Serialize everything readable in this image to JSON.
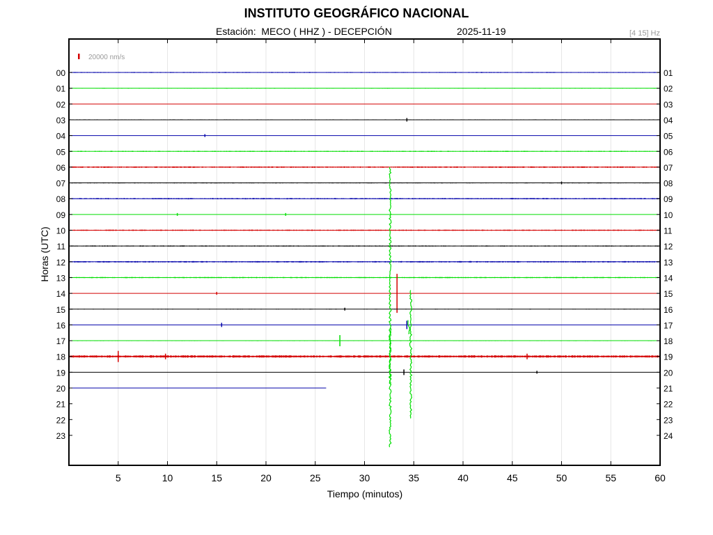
{
  "header": {
    "title": "INSTITUTO GEOGRÁFICO NACIONAL",
    "subtitle": "Estación:  MECO ( HHZ ) - DECEPCIÓN",
    "date": "2025-11-19",
    "filter": "[4 15] Hz"
  },
  "chart_data": {
    "type": "line",
    "title": "INSTITUTO GEOGRÁFICO NACIONAL",
    "subtitle": "Estación:  MECO ( HHZ ) - DECEPCIÓN",
    "xlabel": "Tiempo (minutos)",
    "ylabel": "Horas (UTC)",
    "xlim": [
      0,
      60
    ],
    "x_ticks": [
      5,
      10,
      15,
      20,
      25,
      30,
      35,
      40,
      45,
      50,
      55,
      60
    ],
    "grid": "vertical",
    "scale_bar_label": "20000 nm/s",
    "scale_bar_color": "#d40000",
    "colors": [
      "#0000aa",
      "#00dd00",
      "#d40000",
      "#000000"
    ],
    "left_tick_labels": [
      "00",
      "01",
      "02",
      "03",
      "04",
      "05",
      "06",
      "07",
      "08",
      "09",
      "10",
      "11",
      "12",
      "13",
      "14",
      "15",
      "16",
      "17",
      "18",
      "19",
      "20",
      "21",
      "22",
      "23"
    ],
    "right_tick_labels": [
      "01",
      "02",
      "03",
      "04",
      "05",
      "06",
      "07",
      "08",
      "09",
      "10",
      "11",
      "12",
      "13",
      "14",
      "15",
      "16",
      "17",
      "18",
      "19",
      "20",
      "21",
      "22",
      "23",
      "24"
    ],
    "traces": [
      {
        "hour": 0,
        "color": "#0000aa",
        "end": 60,
        "noise": 0.7
      },
      {
        "hour": 1,
        "color": "#00dd00",
        "end": 60,
        "noise": 0.6
      },
      {
        "hour": 2,
        "color": "#d40000",
        "end": 60,
        "noise": 0.4
      },
      {
        "hour": 3,
        "color": "#000000",
        "end": 60,
        "noise": 0.6,
        "events": [
          {
            "t": 34.3,
            "a": 2.5
          }
        ]
      },
      {
        "hour": 4,
        "color": "#0000aa",
        "end": 60,
        "noise": 0.4,
        "events": [
          {
            "t": 13.8,
            "a": 2
          }
        ]
      },
      {
        "hour": 5,
        "color": "#00dd00",
        "end": 60,
        "noise": 0.8
      },
      {
        "hour": 6,
        "color": "#d40000",
        "end": 60,
        "noise": 1.0
      },
      {
        "hour": 7,
        "color": "#000000",
        "end": 60,
        "noise": 0.7,
        "events": [
          {
            "t": 50,
            "a": 2
          }
        ]
      },
      {
        "hour": 8,
        "color": "#0000aa",
        "end": 60,
        "noise": 0.9
      },
      {
        "hour": 9,
        "color": "#00dd00",
        "end": 60,
        "noise": 0.4,
        "events": [
          {
            "t": 11,
            "a": 2
          },
          {
            "t": 22,
            "a": 2
          }
        ]
      },
      {
        "hour": 10,
        "color": "#d40000",
        "end": 60,
        "noise": 0.9
      },
      {
        "hour": 11,
        "color": "#000000",
        "end": 60,
        "noise": 0.8
      },
      {
        "hour": 12,
        "color": "#0000aa",
        "end": 60,
        "noise": 1.0
      },
      {
        "hour": 13,
        "color": "#00dd00",
        "end": 60,
        "noise": 0.9
      },
      {
        "hour": 14,
        "color": "#d40000",
        "end": 60,
        "noise": 0.4,
        "events": [
          {
            "t": 33.3,
            "a": 28
          },
          {
            "t": 15,
            "a": 2
          }
        ]
      },
      {
        "hour": 15,
        "color": "#000000",
        "end": 60,
        "noise": 0.6,
        "events": [
          {
            "t": 28,
            "a": 2
          }
        ]
      },
      {
        "hour": 16,
        "color": "#0000aa",
        "end": 60,
        "noise": 0.5,
        "events": [
          {
            "t": 34.3,
            "a": 6
          },
          {
            "t": 15.5,
            "a": 3
          }
        ]
      },
      {
        "hour": 17,
        "color": "#00dd00",
        "end": 60,
        "noise": 0.6,
        "events": [
          {
            "t": 27.5,
            "a": 8
          }
        ]
      },
      {
        "hour": 18,
        "color": "#d40000",
        "end": 60,
        "noise": 1.7,
        "events": [
          {
            "t": 5,
            "a": 8
          },
          {
            "t": 9.8,
            "a": 4
          },
          {
            "t": 46.5,
            "a": 4
          }
        ]
      },
      {
        "hour": 19,
        "color": "#000000",
        "end": 60,
        "noise": 0.4,
        "events": [
          {
            "t": 34,
            "a": 4
          },
          {
            "t": 47.5,
            "a": 2
          }
        ]
      },
      {
        "hour": 20,
        "color": "#0000aa",
        "end": 26.1,
        "noise": 0.5
      }
    ],
    "big_events": [
      {
        "t": 32.6,
        "top_hour": 6.0,
        "bottom_hour": 23.8,
        "color": "#00dd00"
      },
      {
        "t": 34.7,
        "top_hour": 13.8,
        "bottom_hour": 22.0,
        "color": "#00dd00"
      },
      {
        "t": 34.5,
        "top_hour": 15.7,
        "bottom_hour": 16.6,
        "color": "#00dd00"
      },
      {
        "t": 32.6,
        "top_hour": 16.2,
        "bottom_hour": 19.8,
        "color": "#00dd00"
      }
    ]
  }
}
